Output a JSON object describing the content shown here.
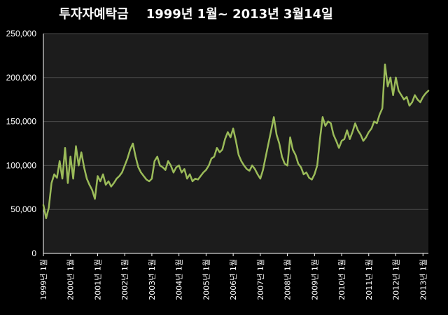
{
  "chart_data": {
    "type": "line",
    "title": "투자자예탁금    1999년 1월~ 2013년 3월14일",
    "xlabel": "",
    "ylabel": "",
    "ylim": [
      0,
      250000
    ],
    "yticks": [
      0,
      50000,
      100000,
      150000,
      200000,
      250000
    ],
    "ytick_labels": [
      "0",
      "50,000",
      "100,000",
      "150,000",
      "200,000",
      "250,000"
    ],
    "xlim": [
      1999.0,
      2013.2
    ],
    "xtick_labels": [
      "1999년 1월",
      "2000년 1월",
      "2001년 1월",
      "2002년 1월",
      "2003년 1월",
      "2004년 1월",
      "2005년 1월",
      "2006년 1월",
      "2007년 1월",
      "2008년 1월",
      "2009년 1월",
      "2010년 1월",
      "2011년 1월",
      "2012년 1월",
      "2013년 1월"
    ],
    "grid": true,
    "legend": "none",
    "colors": {
      "line": "#9bbb59",
      "plot_bg": "#1c1c1c",
      "grid": "#4a4a4a",
      "axis": "#ffffff"
    },
    "series": [
      {
        "x": [
          1999.0,
          1999.1,
          1999.2,
          1999.3,
          1999.4,
          1999.5,
          1999.6,
          1999.7,
          1999.8,
          1999.9,
          2000.0,
          2000.1,
          2000.2,
          2000.3,
          2000.4,
          2000.5,
          2000.6,
          2000.7,
          2000.8,
          2000.9,
          2001.0,
          2001.1,
          2001.2,
          2001.3,
          2001.4,
          2001.5,
          2001.6,
          2001.7,
          2001.8,
          2001.9,
          2002.0,
          2002.1,
          2002.2,
          2002.3,
          2002.4,
          2002.5,
          2002.6,
          2002.7,
          2002.8,
          2002.9,
          2003.0,
          2003.1,
          2003.2,
          2003.3,
          2003.4,
          2003.5,
          2003.6,
          2003.7,
          2003.8,
          2003.9,
          2004.0,
          2004.1,
          2004.2,
          2004.3,
          2004.4,
          2004.5,
          2004.6,
          2004.7,
          2004.8,
          2004.9,
          2005.0,
          2005.1,
          2005.2,
          2005.3,
          2005.4,
          2005.5,
          2005.6,
          2005.7,
          2005.8,
          2005.9,
          2006.0,
          2006.1,
          2006.2,
          2006.3,
          2006.4,
          2006.5,
          2006.6,
          2006.7,
          2006.8,
          2006.9,
          2007.0,
          2007.1,
          2007.2,
          2007.3,
          2007.4,
          2007.5,
          2007.6,
          2007.7,
          2007.8,
          2007.9,
          2008.0,
          2008.1,
          2008.2,
          2008.3,
          2008.4,
          2008.5,
          2008.6,
          2008.7,
          2008.8,
          2008.9,
          2009.0,
          2009.1,
          2009.2,
          2009.3,
          2009.4,
          2009.5,
          2009.6,
          2009.7,
          2009.8,
          2009.9,
          2010.0,
          2010.1,
          2010.2,
          2010.3,
          2010.4,
          2010.5,
          2010.6,
          2010.7,
          2010.8,
          2010.9,
          2011.0,
          2011.1,
          2011.2,
          2011.3,
          2011.4,
          2011.5,
          2011.6,
          2011.7,
          2011.8,
          2011.9,
          2012.0,
          2012.1,
          2012.2,
          2012.3,
          2012.4,
          2012.5,
          2012.6,
          2012.7,
          2012.8,
          2012.9,
          2013.0,
          2013.1,
          2013.2
        ],
        "y": [
          55000,
          40000,
          52000,
          80000,
          90000,
          86000,
          105000,
          85000,
          120000,
          80000,
          110000,
          85000,
          122000,
          100000,
          115000,
          98000,
          85000,
          78000,
          72000,
          62000,
          88000,
          82000,
          90000,
          78000,
          82000,
          76000,
          80000,
          85000,
          88000,
          92000,
          100000,
          108000,
          118000,
          125000,
          110000,
          98000,
          92000,
          88000,
          84000,
          82000,
          85000,
          105000,
          110000,
          100000,
          98000,
          95000,
          105000,
          100000,
          92000,
          98000,
          100000,
          92000,
          96000,
          85000,
          90000,
          82000,
          85000,
          84000,
          88000,
          92000,
          95000,
          100000,
          108000,
          110000,
          120000,
          115000,
          118000,
          130000,
          138000,
          132000,
          142000,
          128000,
          112000,
          105000,
          100000,
          96000,
          94000,
          100000,
          96000,
          90000,
          85000,
          95000,
          110000,
          125000,
          140000,
          155000,
          135000,
          125000,
          110000,
          102000,
          100000,
          132000,
          118000,
          112000,
          102000,
          98000,
          90000,
          92000,
          86000,
          84000,
          90000,
          100000,
          130000,
          155000,
          145000,
          150000,
          148000,
          135000,
          128000,
          120000,
          128000,
          130000,
          140000,
          130000,
          138000,
          148000,
          140000,
          135000,
          128000,
          132000,
          138000,
          142000,
          150000,
          148000,
          158000,
          165000,
          215000,
          190000,
          200000,
          180000,
          200000,
          185000,
          180000,
          175000,
          178000,
          168000,
          172000,
          180000,
          175000,
          172000,
          178000,
          182000,
          185000
        ]
      }
    ]
  }
}
